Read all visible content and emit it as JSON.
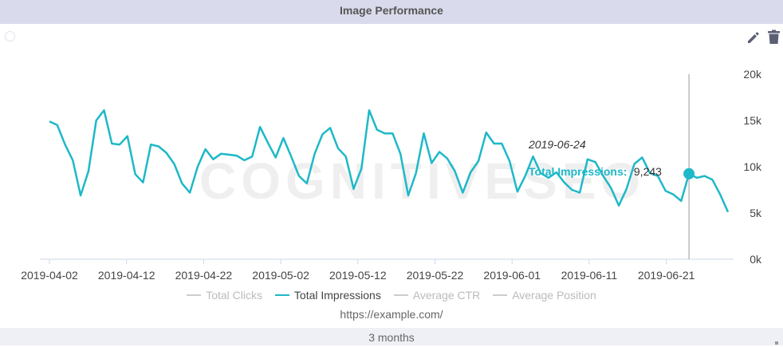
{
  "header": {
    "title": "Image Performance"
  },
  "toolbar": {
    "edit_icon": "pencil-icon",
    "delete_icon": "trash-icon"
  },
  "chart_data": {
    "type": "line",
    "x_labels": [
      "2019-04-02",
      "2019-04-12",
      "2019-04-22",
      "2019-05-02",
      "2019-05-12",
      "2019-05-22",
      "2019-06-01",
      "2019-06-11",
      "2019-06-21"
    ],
    "y_ticks": [
      "0k",
      "5k",
      "10k",
      "15k",
      "20k"
    ],
    "ylim": [
      0,
      20000
    ],
    "x_start": "2019-04-02",
    "x_end": "2019-06-29",
    "series": [
      {
        "name": "Total Clicks",
        "visible": false,
        "values": []
      },
      {
        "name": "Total Impressions",
        "visible": true,
        "color": "#1eb8c8",
        "values": [
          14900,
          14500,
          12400,
          10700,
          6900,
          9500,
          15000,
          16100,
          12500,
          12400,
          13300,
          9200,
          8300,
          12400,
          12200,
          11500,
          10300,
          8200,
          7200,
          10000,
          11900,
          10800,
          11400,
          11300,
          11200,
          10700,
          11100,
          14300,
          12600,
          11000,
          13100,
          11100,
          9000,
          8200,
          11400,
          13500,
          14200,
          12000,
          11100,
          7600,
          9800,
          16100,
          14000,
          13600,
          13600,
          11400,
          6900,
          9300,
          13600,
          10400,
          11600,
          10900,
          9500,
          7200,
          9400,
          10600,
          13700,
          12500,
          12500,
          10600,
          7300,
          9000,
          11100,
          9300,
          8800,
          9400,
          8300,
          7500,
          7200,
          10800,
          10500,
          9000,
          7700,
          5800,
          7600,
          10300,
          11000,
          9300,
          9000,
          7400,
          7000,
          6300,
          9243,
          8800,
          9000,
          8600,
          7000,
          5100
        ]
      },
      {
        "name": "Average CTR",
        "visible": false,
        "values": []
      },
      {
        "name": "Average Position",
        "visible": false,
        "values": []
      }
    ],
    "hover": {
      "date": "2019-06-24",
      "series": "Total Impressions",
      "label": "Total Impressions:",
      "value": "9,243"
    },
    "legend_position": "bottom"
  },
  "legend": [
    {
      "label": "Total Clicks",
      "active": false,
      "color": "#cccccc"
    },
    {
      "label": "Total Impressions",
      "active": true,
      "color": "#1eb8c8"
    },
    {
      "label": "Average CTR",
      "active": false,
      "color": "#cccccc"
    },
    {
      "label": "Average Position",
      "active": false,
      "color": "#cccccc"
    }
  ],
  "watermark": "COGNITIVESEO",
  "source": "https://example.com/",
  "footer": {
    "range_label": "3 months"
  }
}
